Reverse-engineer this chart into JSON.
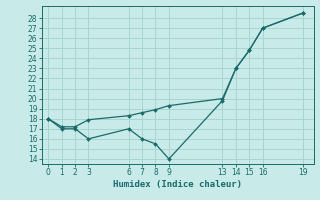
{
  "xlabel": "Humidex (Indice chaleur)",
  "bg_color": "#c8eae8",
  "line_color": "#1a6b6b",
  "grid_color": "#aad4d2",
  "xlim": [
    -0.5,
    19.8
  ],
  "ylim": [
    13.5,
    29.2
  ],
  "xticks": [
    0,
    1,
    2,
    3,
    6,
    7,
    8,
    9,
    13,
    14,
    15,
    16,
    19
  ],
  "yticks": [
    14,
    15,
    16,
    17,
    18,
    19,
    20,
    21,
    22,
    23,
    24,
    25,
    26,
    27,
    28
  ],
  "line1_x": [
    0,
    1,
    2,
    3,
    6,
    7,
    8,
    9,
    13,
    14,
    15,
    16,
    19
  ],
  "line1_y": [
    18,
    17,
    17,
    16,
    17,
    16,
    15.5,
    14,
    19.8,
    23,
    24.8,
    27,
    28.5
  ],
  "line2_x": [
    0,
    1,
    2,
    3,
    6,
    7,
    8,
    9,
    13,
    14,
    15,
    16,
    19
  ],
  "line2_y": [
    18,
    17.2,
    17.2,
    17.9,
    18.3,
    18.6,
    18.9,
    19.3,
    20.0,
    23,
    24.8,
    27,
    28.5
  ]
}
